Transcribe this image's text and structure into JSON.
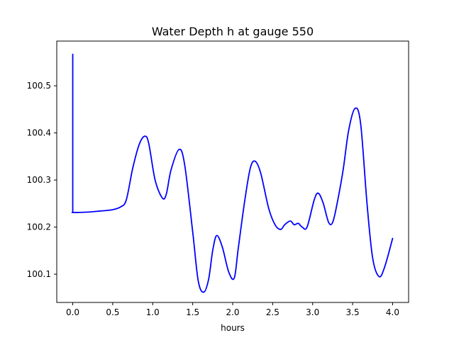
{
  "chart_data": {
    "type": "line",
    "title": "Water Depth h at gauge 550",
    "xlabel": "hours",
    "ylabel": "",
    "xlim": [
      -0.2,
      4.2
    ],
    "ylim": [
      100.04,
      100.595
    ],
    "xticks": [
      0.0,
      0.5,
      1.0,
      1.5,
      2.0,
      2.5,
      3.0,
      3.5,
      4.0
    ],
    "xtick_labels": [
      "0.0",
      "0.5",
      "1.0",
      "1.5",
      "2.0",
      "2.5",
      "3.0",
      "3.5",
      "4.0"
    ],
    "yticks": [
      100.1,
      100.2,
      100.3,
      100.4,
      100.5
    ],
    "ytick_labels": [
      "100.1",
      "100.2",
      "100.3",
      "100.4",
      "100.5"
    ],
    "grid": false,
    "line_color": "#0000ff",
    "series": [
      {
        "x": [
          0.0,
          0.0,
          0.01,
          0.2,
          0.4,
          0.5,
          0.6,
          0.67,
          0.75,
          0.83,
          0.9,
          0.95,
          1.03,
          1.12,
          1.17,
          1.23,
          1.33,
          1.4,
          1.5,
          1.57,
          1.64,
          1.7,
          1.75,
          1.8,
          1.87,
          1.95,
          2.02,
          2.07,
          2.15,
          2.22,
          2.28,
          2.35,
          2.45,
          2.53,
          2.6,
          2.65,
          2.72,
          2.77,
          2.82,
          2.87,
          2.93,
          3.02,
          3.07,
          3.13,
          3.2,
          3.25,
          3.3,
          3.38,
          3.45,
          3.53,
          3.6,
          3.68,
          3.75,
          3.83,
          3.9,
          4.0
        ],
        "y": [
          100.567,
          100.231,
          100.231,
          100.232,
          100.235,
          100.237,
          100.243,
          100.258,
          100.325,
          100.375,
          100.393,
          100.378,
          100.3,
          100.262,
          100.27,
          100.322,
          100.365,
          100.332,
          100.19,
          100.085,
          100.062,
          100.09,
          100.15,
          100.182,
          100.158,
          100.105,
          100.092,
          100.155,
          100.255,
          100.325,
          100.34,
          100.315,
          100.24,
          100.205,
          100.195,
          100.205,
          100.213,
          100.205,
          100.208,
          100.2,
          100.2,
          100.258,
          100.272,
          100.252,
          100.21,
          100.21,
          100.245,
          100.32,
          100.405,
          100.452,
          100.42,
          100.25,
          100.135,
          100.095,
          100.115,
          100.176
        ]
      }
    ]
  }
}
